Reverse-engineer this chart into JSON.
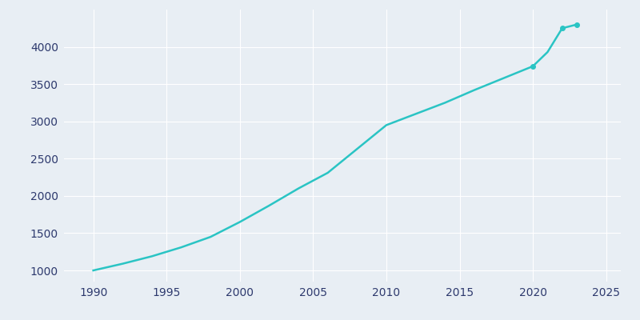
{
  "years": [
    1990,
    1992,
    1994,
    1996,
    1998,
    2000,
    2002,
    2004,
    2006,
    2008,
    2010,
    2012,
    2014,
    2016,
    2018,
    2020,
    2021,
    2022,
    2023
  ],
  "population": [
    1000,
    1090,
    1190,
    1310,
    1450,
    1650,
    1870,
    2100,
    2310,
    2630,
    2950,
    3100,
    3250,
    3420,
    3580,
    3740,
    3930,
    4250,
    4300
  ],
  "marker_years": [
    2020,
    2022,
    2023
  ],
  "line_color": "#2AC4C4",
  "marker_color": "#2AC4C4",
  "background_color": "#E8EEF4",
  "grid_color": "#FFFFFF",
  "text_color": "#2E3A6E",
  "xlim": [
    1988,
    2026
  ],
  "ylim": [
    850,
    4500
  ],
  "xticks": [
    1990,
    1995,
    2000,
    2005,
    2010,
    2015,
    2020,
    2025
  ],
  "yticks": [
    1000,
    1500,
    2000,
    2500,
    3000,
    3500,
    4000
  ],
  "figsize": [
    8.0,
    4.0
  ],
  "dpi": 100
}
